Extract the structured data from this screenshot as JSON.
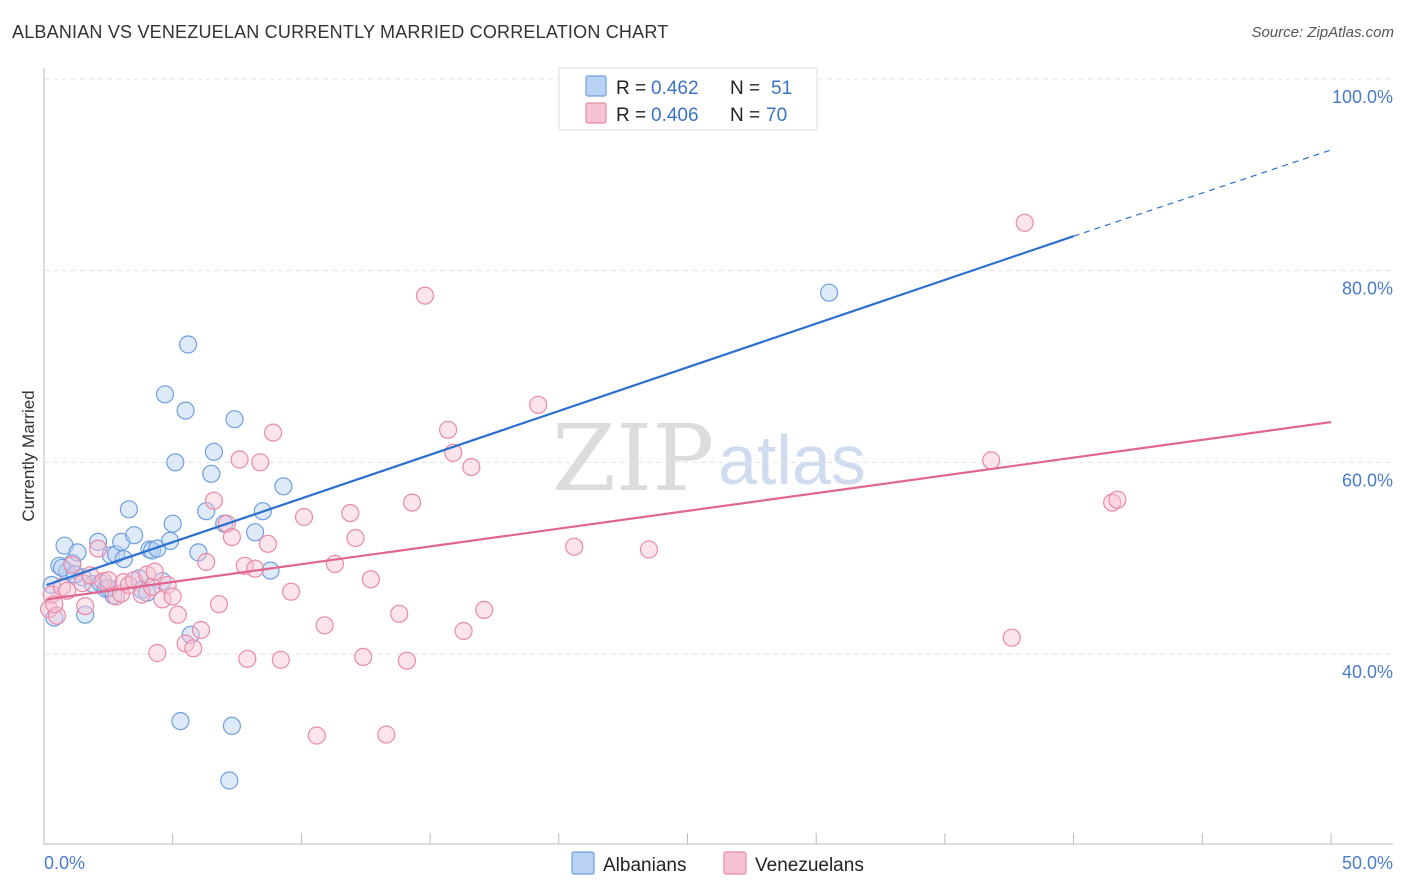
{
  "title": "ALBANIAN VS VENEZUELAN CURRENTLY MARRIED CORRELATION CHART",
  "source": "Source: ZipAtlas.com",
  "watermark": {
    "zip": "ZIP",
    "atlas": "atlas"
  },
  "chart_data": {
    "type": "scatter",
    "ylabel": "Currently Married",
    "xlim": [
      0,
      50
    ],
    "ylim": [
      20,
      103
    ],
    "x_tick_labels": [
      "0.0%",
      "50.0%"
    ],
    "y_ticks": [
      40,
      60,
      80,
      100
    ],
    "y_tick_labels": [
      "40.0%",
      "60.0%",
      "80.0%",
      "100.0%"
    ],
    "grid": true,
    "legend": [
      {
        "r_label": "R = ",
        "r_value": "0.462",
        "n_label": "N = ",
        "n_value": "51"
      },
      {
        "r_label": "R = ",
        "r_value": "0.406",
        "n_label": "N = ",
        "n_value": "70"
      }
    ],
    "series": [
      {
        "name": "Albanians",
        "color": "#6f9fe0",
        "fill": "#b9d1f2",
        "line_color": "#2b6fcf",
        "trend": {
          "x0": 0.1,
          "y0": 47.2,
          "x1": 40.0,
          "y1": 83.6,
          "x_dash_end": 50.0,
          "y_dash_end": 92.6
        },
        "points": [
          [
            0.3,
            47.2
          ],
          [
            0.4,
            43.8
          ],
          [
            0.6,
            49.2
          ],
          [
            0.8,
            51.3
          ],
          [
            0.9,
            48.6
          ],
          [
            1.1,
            49.5
          ],
          [
            1.3,
            50.6
          ],
          [
            1.5,
            48.0
          ],
          [
            1.6,
            44.1
          ],
          [
            1.9,
            47.3
          ],
          [
            2.1,
            51.7
          ],
          [
            2.2,
            47.4
          ],
          [
            2.4,
            46.8
          ],
          [
            2.6,
            50.3
          ],
          [
            2.7,
            46.1
          ],
          [
            2.8,
            50.4
          ],
          [
            3.0,
            51.7
          ],
          [
            3.1,
            49.9
          ],
          [
            3.3,
            55.1
          ],
          [
            3.5,
            52.4
          ],
          [
            3.7,
            47.9
          ],
          [
            3.8,
            46.7
          ],
          [
            4.0,
            46.4
          ],
          [
            4.1,
            50.9
          ],
          [
            4.2,
            50.8
          ],
          [
            4.4,
            51.0
          ],
          [
            4.6,
            47.6
          ],
          [
            4.7,
            67.1
          ],
          [
            4.9,
            51.8
          ],
          [
            5.0,
            53.6
          ],
          [
            5.1,
            60.0
          ],
          [
            5.3,
            33.0
          ],
          [
            5.5,
            65.4
          ],
          [
            5.6,
            72.3
          ],
          [
            5.7,
            42.0
          ],
          [
            6.0,
            50.6
          ],
          [
            6.3,
            54.9
          ],
          [
            6.5,
            58.8
          ],
          [
            6.6,
            61.1
          ],
          [
            7.0,
            53.6
          ],
          [
            7.2,
            26.8
          ],
          [
            7.3,
            32.5
          ],
          [
            7.4,
            64.5
          ],
          [
            8.2,
            52.7
          ],
          [
            8.5,
            54.9
          ],
          [
            8.8,
            48.7
          ],
          [
            9.3,
            57.5
          ],
          [
            30.5,
            77.7
          ],
          [
            0.7,
            49.0
          ],
          [
            1.2,
            48.3
          ],
          [
            2.5,
            46.9
          ]
        ]
      },
      {
        "name": "Venezuelans",
        "color": "#e98aa6",
        "fill": "#f7c3d2",
        "line_color": "#e0668f",
        "trend": {
          "x0": 0.1,
          "y0": 45.7,
          "x1": 50.0,
          "y1": 64.2
        },
        "points": [
          [
            0.2,
            44.7
          ],
          [
            0.3,
            46.2
          ],
          [
            0.5,
            44.0
          ],
          [
            0.7,
            47.0
          ],
          [
            0.9,
            46.6
          ],
          [
            1.1,
            49.3
          ],
          [
            1.5,
            47.4
          ],
          [
            1.6,
            45.0
          ],
          [
            1.8,
            48.2
          ],
          [
            2.1,
            51.0
          ],
          [
            2.3,
            47.6
          ],
          [
            2.5,
            47.7
          ],
          [
            2.8,
            46.0
          ],
          [
            3.0,
            46.3
          ],
          [
            3.1,
            47.5
          ],
          [
            3.3,
            47.2
          ],
          [
            3.5,
            47.7
          ],
          [
            3.8,
            46.2
          ],
          [
            4.0,
            48.3
          ],
          [
            4.2,
            47.0
          ],
          [
            4.3,
            48.6
          ],
          [
            4.4,
            40.1
          ],
          [
            4.6,
            45.7
          ],
          [
            4.8,
            47.2
          ],
          [
            5.0,
            46.0
          ],
          [
            5.2,
            44.1
          ],
          [
            5.5,
            41.1
          ],
          [
            5.8,
            40.6
          ],
          [
            6.1,
            42.5
          ],
          [
            6.3,
            49.6
          ],
          [
            6.6,
            56.0
          ],
          [
            6.8,
            45.2
          ],
          [
            7.1,
            53.6
          ],
          [
            7.3,
            52.2
          ],
          [
            7.6,
            60.3
          ],
          [
            7.9,
            39.5
          ],
          [
            7.8,
            49.2
          ],
          [
            8.2,
            48.9
          ],
          [
            8.4,
            60.0
          ],
          [
            8.7,
            51.5
          ],
          [
            8.9,
            63.1
          ],
          [
            9.2,
            39.4
          ],
          [
            9.6,
            46.5
          ],
          [
            10.1,
            54.3
          ],
          [
            10.6,
            31.5
          ],
          [
            10.9,
            43.0
          ],
          [
            11.3,
            49.4
          ],
          [
            11.9,
            54.7
          ],
          [
            12.1,
            52.1
          ],
          [
            12.4,
            39.7
          ],
          [
            12.7,
            47.8
          ],
          [
            13.3,
            31.6
          ],
          [
            13.8,
            44.2
          ],
          [
            14.1,
            39.3
          ],
          [
            14.3,
            55.8
          ],
          [
            14.8,
            77.4
          ],
          [
            15.7,
            63.4
          ],
          [
            15.9,
            61.0
          ],
          [
            16.3,
            42.4
          ],
          [
            16.6,
            59.5
          ],
          [
            17.1,
            44.6
          ],
          [
            19.2,
            66.0
          ],
          [
            20.6,
            51.2
          ],
          [
            23.5,
            50.9
          ],
          [
            36.8,
            60.2
          ],
          [
            37.6,
            41.7
          ],
          [
            38.1,
            85.0
          ],
          [
            41.5,
            55.8
          ],
          [
            41.7,
            56.1
          ],
          [
            0.4,
            45.2
          ]
        ]
      }
    ]
  }
}
